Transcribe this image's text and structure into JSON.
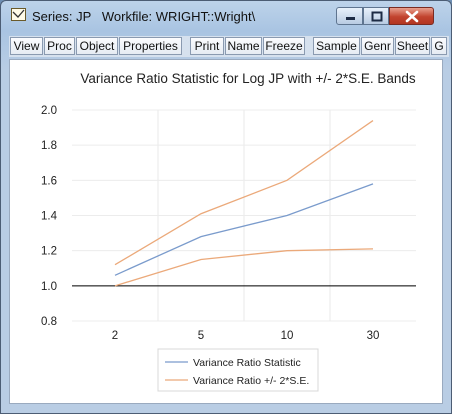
{
  "window": {
    "title": "Series: JP   Workfile: WRIGHT::Wright\\",
    "colors": {
      "frame": "#a9c4e2",
      "close": "#c2432e"
    }
  },
  "toolbar": {
    "buttons": [
      "View",
      "Proc",
      "Object",
      "Properties",
      "Print",
      "Name",
      "Freeze",
      "Sample",
      "Genr",
      "Sheet",
      "G"
    ]
  },
  "chart_data": {
    "type": "line",
    "title": "Variance Ratio Statistic for Log JP with +/- 2*S.E. Bands",
    "categories": [
      "2",
      "5",
      "10",
      "30"
    ],
    "ylim": [
      0.8,
      2.0
    ],
    "yticks": [
      "0.8",
      "1.0",
      "1.2",
      "1.4",
      "1.6",
      "1.8",
      "2.0"
    ],
    "reference_line": 1.0,
    "grid": true,
    "legend_position": "bottom-center",
    "series": [
      {
        "name": "Variance Ratio Statistic",
        "color": "#7a9bcc",
        "values": [
          1.06,
          1.28,
          1.4,
          1.58
        ]
      },
      {
        "name": "Variance Ratio +/- 2*S.E.",
        "color": "#eba97a",
        "values": [
          1.12,
          1.41,
          1.6,
          1.94
        ]
      },
      {
        "name": "",
        "color": "#eba97a",
        "values": [
          1.0,
          1.15,
          1.2,
          1.21
        ]
      }
    ],
    "legend": [
      "Variance Ratio Statistic",
      "Variance Ratio +/- 2*S.E."
    ]
  }
}
